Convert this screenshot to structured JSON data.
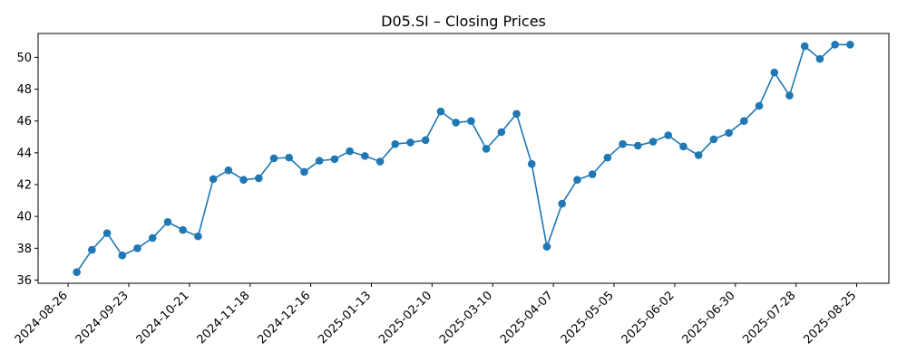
{
  "chart_data": {
    "type": "line",
    "title": "D05.SI – Closing Prices",
    "xlabel": "",
    "ylabel": "",
    "grid": false,
    "line_color": "#1f77b4",
    "x_start": "2024-08-30",
    "x_step_days": 7,
    "ylim": [
      35.8,
      51.5
    ],
    "y_ticks": [
      36,
      38,
      40,
      42,
      44,
      46,
      48,
      50
    ],
    "y_tick_labels": [
      "36",
      "38",
      "40",
      "42",
      "44",
      "46",
      "48",
      "50"
    ],
    "x_ticks": [
      "2024-08-26",
      "2024-09-23",
      "2024-10-21",
      "2024-11-18",
      "2024-12-16",
      "2025-01-13",
      "2025-02-10",
      "2025-03-10",
      "2025-04-07",
      "2025-05-05",
      "2025-06-02",
      "2025-06-30",
      "2025-07-28",
      "2025-08-25"
    ],
    "x_tick_labels": [
      "2024-08-26",
      "2024-09-23",
      "2024-10-21",
      "2024-11-18",
      "2024-12-16",
      "2025-01-13",
      "2025-02-10",
      "2025-03-10",
      "2025-04-07",
      "2025-05-05",
      "2025-06-02",
      "2025-06-30",
      "2025-07-28",
      "2025-08-25"
    ],
    "values": [
      36.5,
      37.9,
      38.95,
      37.55,
      38.0,
      38.65,
      39.65,
      39.15,
      38.75,
      42.35,
      42.9,
      42.3,
      42.4,
      43.65,
      43.7,
      42.8,
      43.5,
      43.6,
      44.1,
      43.8,
      43.45,
      44.55,
      44.65,
      44.8,
      46.6,
      45.9,
      46.0,
      44.25,
      45.3,
      46.45,
      43.3,
      38.1,
      40.8,
      42.3,
      42.65,
      43.7,
      44.55,
      44.45,
      44.7,
      45.1,
      44.4,
      43.85,
      44.85,
      45.25,
      46.0,
      46.95,
      49.05,
      47.6,
      50.7,
      49.9,
      50.8,
      50.8
    ]
  }
}
